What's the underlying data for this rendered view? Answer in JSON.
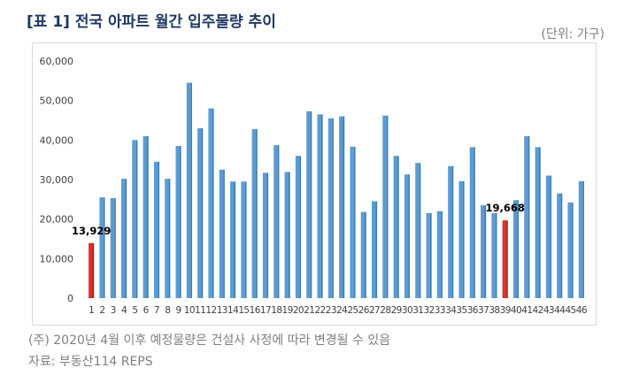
{
  "header": {
    "title": "[표 1] 전국 아파트 월간 입주물량 추이",
    "unit": "(단위: 가구)"
  },
  "footer": {
    "note": "(주) 2020년 4월 이후 예정물량은 건설사 사정에 따라 변경될 수 있음",
    "source": "자료: 부동산114 REPS"
  },
  "colors": {
    "bar": "#5b9bd5",
    "bar_dark": "#3f7ea6",
    "highlight": "#e0302a",
    "highlight_dark": "#a8201c"
  },
  "chart_data": {
    "type": "bar",
    "title": "[표 1] 전국 아파트 월간 입주물량 추이",
    "ylabel": "",
    "xlabel": "",
    "ylim": [
      0,
      60000
    ],
    "yticks": [
      0,
      10000,
      20000,
      30000,
      40000,
      50000,
      60000
    ],
    "ytick_labels": [
      "0",
      "10,000",
      "20,000",
      "30,000",
      "40,000",
      "50,000",
      "60,000"
    ],
    "grid": false,
    "categories": [
      "1",
      "2",
      "3",
      "4",
      "5",
      "6",
      "7",
      "8",
      "9",
      "10",
      "11",
      "12",
      "13",
      "14",
      "15",
      "16",
      "17",
      "18",
      "19",
      "20",
      "21",
      "22",
      "23",
      "24",
      "25",
      "26",
      "27",
      "28",
      "29",
      "30",
      "31",
      "32",
      "33",
      "34",
      "35",
      "36",
      "37",
      "38",
      "39",
      "40",
      "41",
      "42",
      "43",
      "44",
      "45",
      "46"
    ],
    "values": [
      13929,
      25500,
      25300,
      30200,
      40000,
      41000,
      34500,
      30200,
      38500,
      54500,
      43000,
      48000,
      32500,
      29500,
      29500,
      42800,
      31700,
      38700,
      31900,
      36000,
      47300,
      46500,
      45500,
      46000,
      38300,
      21800,
      24500,
      46200,
      36000,
      31300,
      34200,
      21500,
      22000,
      33400,
      29600,
      38200,
      23500,
      21500,
      19668,
      24800,
      41000,
      38200,
      31000,
      26500,
      24200,
      29600
    ],
    "highlight_indices": [
      0,
      38
    ],
    "annotations": [
      {
        "index": 0,
        "text": "13,929"
      },
      {
        "index": 38,
        "text": "19,668"
      }
    ]
  }
}
